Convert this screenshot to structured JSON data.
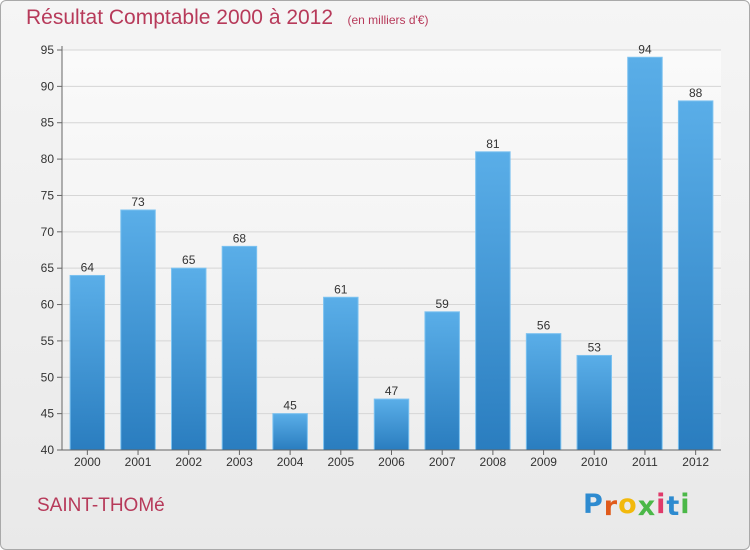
{
  "chart_data": {
    "type": "bar",
    "title": "Résultat Comptable 2000 à 2012",
    "subtitle": "(en milliers d'€)",
    "categories": [
      "2000",
      "2001",
      "2002",
      "2003",
      "2004",
      "2005",
      "2006",
      "2007",
      "2008",
      "2009",
      "2010",
      "2011",
      "2012"
    ],
    "values": [
      64,
      73,
      65,
      68,
      45,
      61,
      47,
      59,
      81,
      56,
      53,
      94,
      88
    ],
    "ylim": [
      40,
      95
    ],
    "yticks": [
      40,
      45,
      50,
      55,
      60,
      65,
      70,
      75,
      80,
      85,
      90,
      95
    ],
    "grid": true,
    "bar_color_top": "#5aaee8",
    "bar_color_bottom": "#2a7dbf"
  },
  "footer": {
    "place_name": "SAINT-THOMé",
    "logo_letters": [
      "P",
      "r",
      "o",
      "x",
      "i",
      "t",
      "i"
    ],
    "logo_colors": [
      "#2e8bd0",
      "#e05a1a",
      "#f2b90c",
      "#4bb848",
      "#e03a6a",
      "#2e8bd0",
      "#4bb848"
    ]
  },
  "colors": {
    "title": "#b73a5a",
    "grid": "#d6d6d6",
    "axis": "#666666"
  }
}
